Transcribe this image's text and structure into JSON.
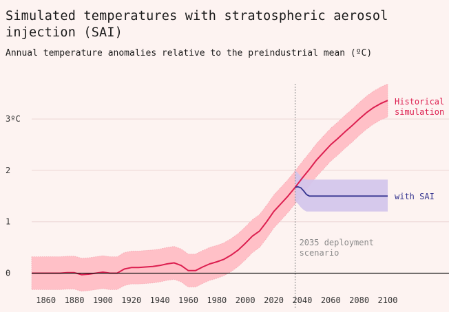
{
  "header": {
    "title": "Simulated temperatures with stratospheric aerosol injection (SAI)",
    "subtitle": "Annual temperature anomalies relative to the preindustrial mean (ºC)"
  },
  "colors": {
    "historical_line": "#dc1e4f",
    "historical_band": "#ffc0c7",
    "sai_line": "#33338f",
    "sai_band": "#d2c6ec",
    "deployment_line": "#999999",
    "gridline": "#ecd4d4",
    "zero_line": "#111111"
  },
  "chart_data": {
    "type": "line",
    "title": "Simulated temperatures with stratospheric aerosol injection (SAI)",
    "subtitle": "Annual temperature anomalies relative to the preindustrial mean (ºC)",
    "xlabel": "",
    "ylabel": "",
    "xlim": [
      1850,
      2100
    ],
    "ylim": [
      -0.5,
      3.7
    ],
    "x_ticks": [
      1860,
      1880,
      1900,
      1920,
      1940,
      1960,
      1980,
      2000,
      2020,
      2040,
      2060,
      2080,
      2100
    ],
    "y_ticks": [
      {
        "value": 0,
        "label": "0"
      },
      {
        "value": 1,
        "label": "1"
      },
      {
        "value": 2,
        "label": "2"
      },
      {
        "value": 3,
        "label": "3ºC"
      }
    ],
    "series": [
      {
        "name": "Historical simulation",
        "label_lines": [
          "Historical",
          "simulation"
        ],
        "x": [
          1850,
          1855,
          1860,
          1865,
          1870,
          1875,
          1880,
          1885,
          1890,
          1895,
          1900,
          1905,
          1910,
          1915,
          1920,
          1925,
          1930,
          1935,
          1940,
          1945,
          1950,
          1955,
          1960,
          1965,
          1970,
          1975,
          1980,
          1985,
          1990,
          1995,
          2000,
          2005,
          2010,
          2015,
          2020,
          2025,
          2030,
          2035,
          2040,
          2045,
          2050,
          2055,
          2060,
          2065,
          2070,
          2075,
          2080,
          2085,
          2090,
          2095,
          2100
        ],
        "values": [
          0.0,
          0.0,
          0.0,
          0.0,
          0.0,
          0.01,
          0.01,
          -0.03,
          -0.02,
          0.0,
          0.02,
          0.0,
          0.0,
          0.08,
          0.11,
          0.11,
          0.12,
          0.13,
          0.15,
          0.18,
          0.2,
          0.15,
          0.05,
          0.05,
          0.12,
          0.18,
          0.22,
          0.27,
          0.35,
          0.45,
          0.58,
          0.72,
          0.82,
          1.0,
          1.2,
          1.35,
          1.5,
          1.67,
          1.85,
          2.02,
          2.2,
          2.35,
          2.5,
          2.62,
          2.75,
          2.87,
          3.0,
          3.12,
          3.22,
          3.3,
          3.36
        ],
        "band_half_width": 0.32
      },
      {
        "name": "with SAI",
        "label_lines": [
          "with SAI"
        ],
        "x": [
          2035,
          2037,
          2039,
          2041,
          2043,
          2045,
          2050,
          2060,
          2070,
          2080,
          2090,
          2100
        ],
        "values": [
          1.67,
          1.68,
          1.66,
          1.6,
          1.53,
          1.5,
          1.5,
          1.5,
          1.5,
          1.5,
          1.5,
          1.5
        ],
        "band_low": [
          1.4,
          1.35,
          1.28,
          1.23,
          1.2,
          1.2,
          1.2,
          1.2,
          1.2,
          1.2,
          1.2,
          1.2
        ],
        "band_high": [
          2.0,
          1.95,
          1.88,
          1.84,
          1.82,
          1.82,
          1.82,
          1.82,
          1.82,
          1.82,
          1.82,
          1.82
        ]
      }
    ],
    "annotations": [
      {
        "x": 2035,
        "text_lines": [
          "2035 deployment",
          "scenario"
        ]
      }
    ],
    "grid": true,
    "legend": "inline labels at right end of series"
  }
}
